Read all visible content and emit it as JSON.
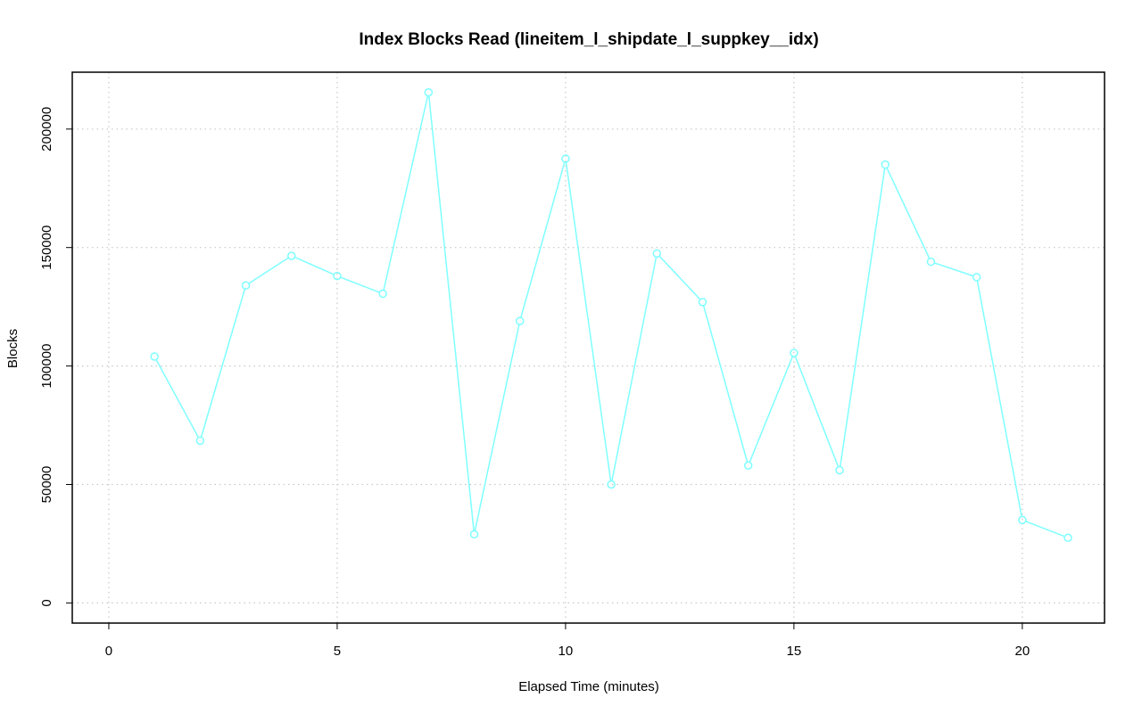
{
  "chart_data": {
    "type": "line",
    "title": "Index Blocks Read (lineitem_l_shipdate_l_suppkey__idx)",
    "xlabel": "Elapsed Time (minutes)",
    "ylabel": "Blocks",
    "xlim": [
      -0.8,
      21.8
    ],
    "ylim": [
      -8500,
      224000
    ],
    "x_ticks": [
      0,
      5,
      10,
      15,
      20
    ],
    "x_tick_labels": [
      "0",
      "5",
      "10",
      "15",
      "20"
    ],
    "y_ticks": [
      0,
      50000,
      100000,
      150000,
      200000
    ],
    "y_tick_labels": [
      "0",
      "50000",
      "100000",
      "150000",
      "200000"
    ],
    "grid": true,
    "series": [
      {
        "color": "#7fffff",
        "marker": "open-circle",
        "x": [
          1,
          2,
          3,
          4,
          5,
          6,
          7,
          8,
          9,
          10,
          11,
          12,
          13,
          14,
          15,
          16,
          17,
          18,
          19,
          20,
          21
        ],
        "values": [
          104000,
          68500,
          134000,
          146500,
          138000,
          130500,
          215500,
          29000,
          119000,
          187500,
          50000,
          147500,
          127000,
          58000,
          105500,
          56000,
          185000,
          144000,
          137500,
          35000,
          27500
        ]
      }
    ]
  }
}
